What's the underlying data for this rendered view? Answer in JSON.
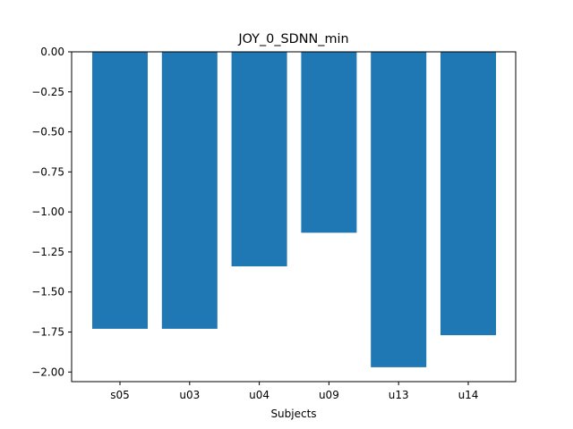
{
  "chart_data": {
    "type": "bar",
    "title": "JOY_0_SDNN_min",
    "xlabel": "Subjects",
    "ylabel": "",
    "categories": [
      "s05",
      "u03",
      "u04",
      "u09",
      "u13",
      "u14"
    ],
    "values": [
      -1.73,
      -1.73,
      -1.34,
      -1.13,
      -1.97,
      -1.77
    ],
    "ylim": [
      -2.06,
      0.0
    ],
    "yticks": [
      0.0,
      -0.25,
      -0.5,
      -0.75,
      -1.0,
      -1.25,
      -1.5,
      -1.75,
      -2.0
    ],
    "ytick_labels": [
      "0.00",
      "−0.25",
      "−0.50",
      "−0.75",
      "−1.00",
      "−1.25",
      "−1.50",
      "−1.75",
      "−2.00"
    ],
    "bar_color": "#1f77b4",
    "grid": false,
    "legend": "none"
  }
}
